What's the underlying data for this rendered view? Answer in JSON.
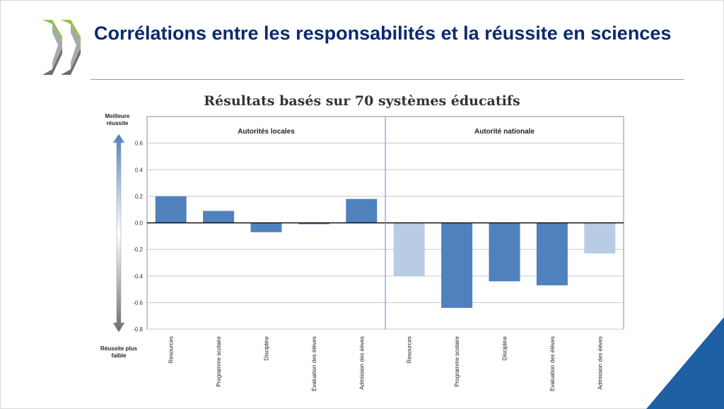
{
  "slide": {
    "title": "Corrélations entre les responsabilités et la réussite en sciences",
    "accent_color": "#0a2a70",
    "logo_icon": "double-chevron-icon"
  },
  "chart_data": {
    "type": "bar",
    "title": "Résultats basés sur 70 systèmes éducatifs",
    "ylim": [
      -0.8,
      0.8
    ],
    "yticks": [
      -0.8,
      -0.6,
      -0.4,
      -0.2,
      0.0,
      0.2,
      0.4,
      0.6
    ],
    "ytick_labels": [
      "-0.8",
      "-0.6",
      "-0.4",
      "-0.2",
      "0.0",
      "0.2",
      "0.4",
      "0.6"
    ],
    "ylabel_top": "Meilleure réussite",
    "ylabel_bottom": "Réussite plus faible",
    "grid": true,
    "categories": [
      "Resources",
      "Programme scolaire",
      "Discipline",
      "Evaluation des élèves",
      "Admission des éèves",
      "Resources",
      "Programme scolaire",
      "Discipline",
      "Evaluation des élèves",
      "Admission des éèves"
    ],
    "groups": [
      {
        "name": "Autorités locales",
        "start": 0,
        "end": 4
      },
      {
        "name": "Autorité nationale",
        "start": 5,
        "end": 9
      }
    ],
    "values": [
      0.2,
      0.09,
      -0.07,
      -0.01,
      0.18,
      -0.4,
      -0.64,
      -0.44,
      -0.47,
      -0.23
    ],
    "bar_colors": [
      "#4f81bd",
      "#4f81bd",
      "#4f81bd",
      "#4f81bd",
      "#4f81bd",
      "#b8cce4",
      "#4f81bd",
      "#4f81bd",
      "#4f81bd",
      "#b8cce4"
    ]
  }
}
